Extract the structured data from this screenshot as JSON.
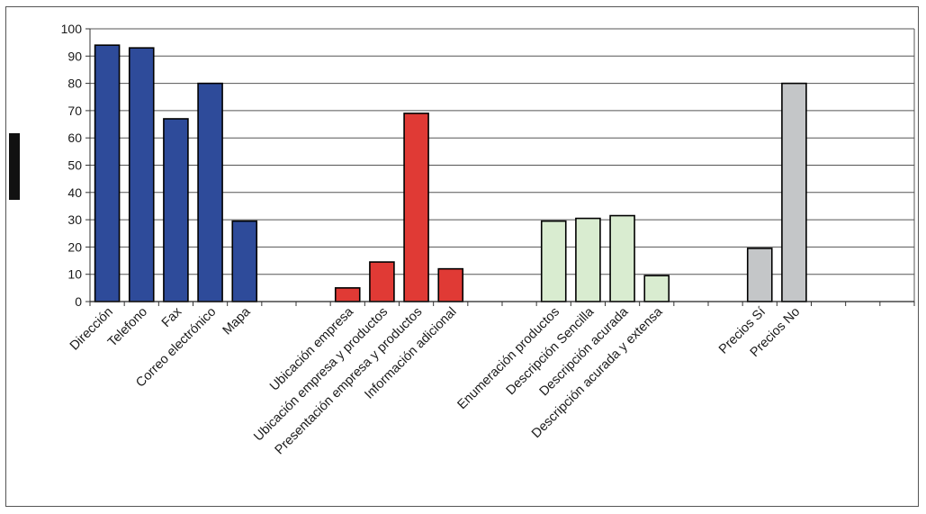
{
  "chart_data": {
    "type": "bar",
    "title": "",
    "xlabel": "",
    "ylabel": "",
    "ylim": [
      0,
      100
    ],
    "yticks": [
      0,
      10,
      20,
      30,
      40,
      50,
      60,
      70,
      80,
      90,
      100
    ],
    "grid": true,
    "legend": "none",
    "groups": [
      {
        "color": "#2e4b9a",
        "categories": [
          "Dirección",
          "Telefono",
          "Fax",
          "Correo electrónico",
          "Mapa"
        ],
        "values": [
          94,
          93,
          67,
          80,
          29.5
        ]
      },
      {
        "color": "#e03a35",
        "categories": [
          "Ubicación empresa",
          "Ubicación empresa y productos",
          "Presentación empresa y productos",
          "Información adicional"
        ],
        "values": [
          5,
          14.5,
          69,
          12
        ]
      },
      {
        "color": "#d9ecd0",
        "categories": [
          "Enumeración productos",
          "Descripción Sencilla",
          "Descripción acurada",
          "Descripción acurada y extensa"
        ],
        "values": [
          29.5,
          30.5,
          31.5,
          9.5
        ]
      },
      {
        "color": "#c4c6c8",
        "categories": [
          "Precios Sí",
          "Precios No"
        ],
        "values": [
          19.5,
          80
        ]
      }
    ]
  }
}
